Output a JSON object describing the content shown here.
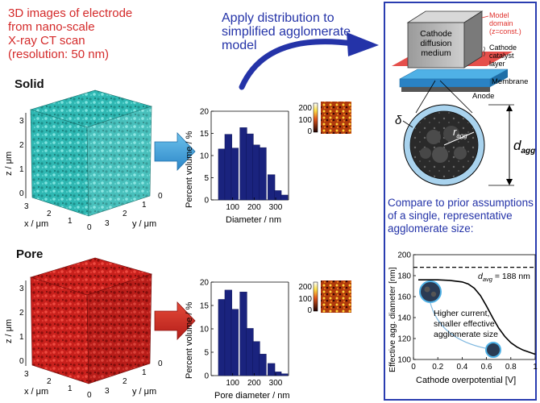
{
  "intro": {
    "lines": [
      "3D images of electrode",
      "from nano-scale",
      "X-ray CT scan",
      "(resolution: 50 nm)"
    ],
    "color": "#d42a2a"
  },
  "apply": {
    "lines": [
      "Apply distribution to",
      "simplified agglomerate",
      "model"
    ],
    "color": "#2433a8"
  },
  "solid_panel": {
    "label": "Solid",
    "cube_color": "#2fb8b3",
    "axis_z": "z / μm",
    "axis_x": "x / μm",
    "axis_y": "y / μm",
    "z_ticks": [
      "0",
      "1",
      "2",
      "3"
    ],
    "x_ticks": [
      "3",
      "2",
      "1",
      "0"
    ],
    "y_ticks": [
      "0",
      "1",
      "2",
      "3"
    ]
  },
  "pore_panel": {
    "label": "Pore",
    "cube_color": "#c9201c",
    "axis_z": "z / μm",
    "axis_x": "x / μm",
    "axis_y": "y / μm",
    "z_ticks": [
      "0",
      "1",
      "2",
      "3"
    ],
    "x_ticks": [
      "3",
      "2",
      "1",
      "0"
    ],
    "y_ticks": [
      "0",
      "1",
      "2",
      "3"
    ]
  },
  "chart_data": [
    {
      "type": "bar",
      "ylabel": "Percent volume / %",
      "xlabel": "Diameter / nm",
      "x": [
        50,
        80,
        110,
        150,
        180,
        210,
        240,
        280,
        310,
        340
      ],
      "values": [
        11.5,
        14.8,
        11.7,
        16.3,
        14.9,
        12.4,
        11.8,
        5.7,
        2.1,
        1.1
      ],
      "xlim": [
        0,
        360
      ],
      "ylim": [
        0,
        20
      ],
      "xticks": [
        100,
        200,
        300
      ],
      "yticks": [
        0,
        5,
        10,
        15,
        20
      ],
      "inset_ticks": [
        "200",
        "100",
        "0"
      ],
      "bar_color": "#1a237e"
    },
    {
      "type": "bar",
      "ylabel": "Percent volume / %",
      "xlabel": "Pore diameter / nm",
      "x": [
        50,
        80,
        110,
        150,
        180,
        210,
        240,
        280,
        310,
        340
      ],
      "values": [
        16.3,
        18.3,
        14.2,
        17.9,
        10.1,
        7.3,
        4.6,
        2.6,
        0.8,
        0.4
      ],
      "xlim": [
        0,
        360
      ],
      "ylim": [
        0,
        20
      ],
      "xticks": [
        100,
        200,
        300
      ],
      "yticks": [
        0,
        5,
        10,
        15,
        20
      ],
      "inset_ticks": [
        "200",
        "100",
        "0"
      ],
      "bar_color": "#1a237e"
    },
    {
      "type": "line",
      "ylabel": "Effective agg. diameter [nm]",
      "xlabel": "Cathode overpotential [V]",
      "xlim": [
        0,
        1
      ],
      "ylim": [
        100,
        200
      ],
      "xticks": [
        "0",
        "0.2",
        "0.4",
        "0.6",
        "0.8",
        "1"
      ],
      "yticks": [
        "100",
        "120",
        "140",
        "160",
        "180",
        "200"
      ],
      "reference_line": {
        "y": 188,
        "label_symbol": "d",
        "label_sub": "avg",
        "label_rest": " = 188 nm"
      },
      "series": [
        {
          "x": [
            0.04,
            0.1,
            0.2,
            0.3,
            0.4,
            0.45,
            0.5,
            0.55,
            0.6,
            0.65,
            0.7,
            0.75,
            0.8,
            0.85,
            0.9,
            0.95,
            1.0
          ],
          "y": [
            176,
            176,
            176,
            175.5,
            174,
            172,
            168,
            161,
            151,
            140,
            130,
            122,
            116,
            112,
            109,
            107,
            105
          ]
        }
      ],
      "annotation": [
        "Higher current,",
        "smaller effective",
        "agglomerate size"
      ]
    }
  ],
  "schematic": {
    "gdl_lines": [
      "Cathode",
      "diffusion",
      "medium"
    ],
    "model_domain": [
      "Model",
      "domain",
      "(z=const.)"
    ],
    "catalyst": [
      "Cathode",
      "catalyst",
      "layer"
    ],
    "membrane": "Membrane",
    "anode": "Anode",
    "delta": "δ",
    "r_symbol": "r",
    "r_sub": "agg",
    "d_symbol": "d",
    "d_sub": "agg",
    "model_color": "#e0302b",
    "blue_color": "#2a3db0"
  },
  "compare": {
    "lines": [
      "Compare to prior assumptions",
      "of a single, representative",
      "agglomerate size:"
    ]
  }
}
